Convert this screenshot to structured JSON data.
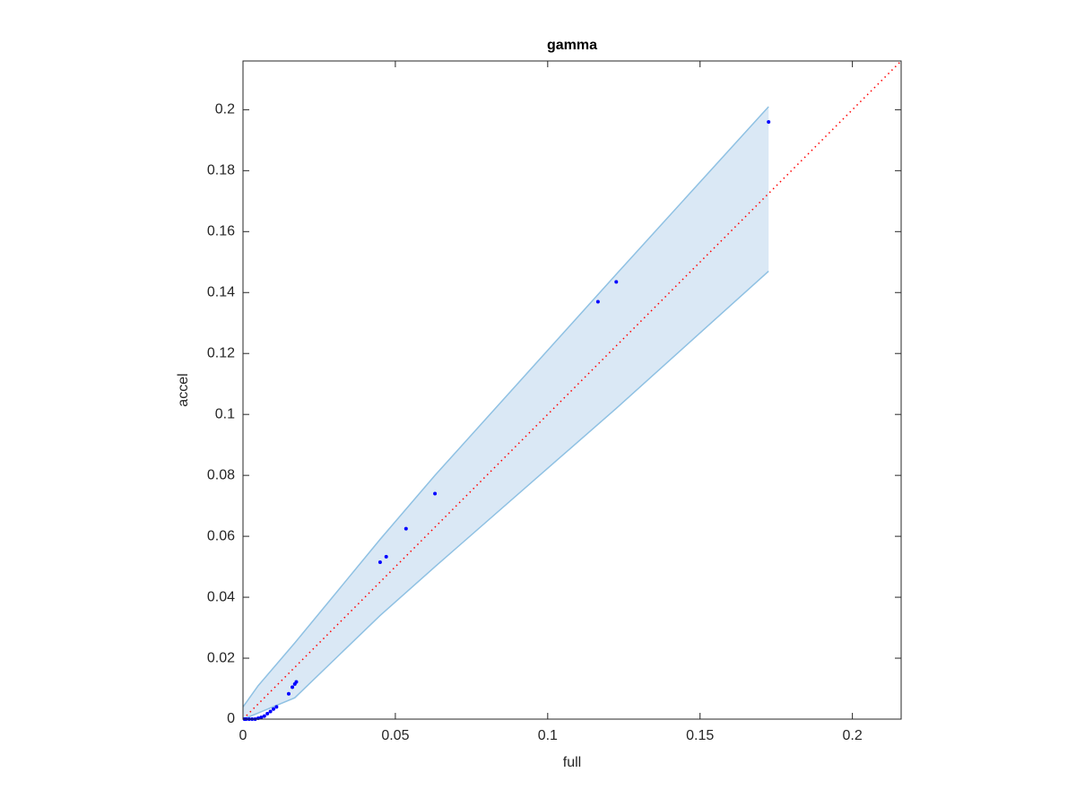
{
  "chart_data": {
    "type": "scatter",
    "title": "gamma",
    "x_label": "full",
    "y_label": "accel",
    "xlim": [
      0,
      0.216
    ],
    "ylim": [
      0,
      0.216
    ],
    "xticks": [
      0,
      0.05,
      0.1,
      0.15,
      0.2
    ],
    "yticks": [
      0,
      0.02,
      0.04,
      0.06,
      0.08,
      0.1,
      0.12,
      0.14,
      0.16,
      0.18,
      0.2
    ],
    "band": {
      "color": "#dae8f5",
      "edge_color": "#8fc1e3",
      "x": [
        0,
        0.005,
        0.017,
        0.045,
        0.063,
        0.1225,
        0.1725
      ],
      "upper": [
        0.004,
        0.011,
        0.025,
        0.059,
        0.08,
        0.146,
        0.201
      ],
      "lower": [
        0,
        0.002,
        0.007,
        0.034,
        0.05,
        0.102,
        0.147
      ]
    },
    "diagonal": {
      "color": "#ff0000",
      "x": [
        0,
        0.216
      ],
      "values": [
        0,
        0.216
      ]
    },
    "points": {
      "color": "#0000ff",
      "x": [
        0.0005,
        0.001,
        0.002,
        0.003,
        0.004,
        0.005,
        0.006,
        0.007,
        0.008,
        0.009,
        0.01,
        0.011,
        0.015,
        0.0162,
        0.017,
        0.0175,
        0.045,
        0.047,
        0.0535,
        0.063,
        0.1165,
        0.1225,
        0.1725
      ],
      "values": [
        0,
        0,
        0,
        0,
        0,
        0.0003,
        0.0006,
        0.001,
        0.0018,
        0.0025,
        0.0033,
        0.004,
        0.0083,
        0.0105,
        0.0115,
        0.0122,
        0.0515,
        0.0533,
        0.0625,
        0.074,
        0.137,
        0.1435,
        0.196
      ]
    }
  }
}
